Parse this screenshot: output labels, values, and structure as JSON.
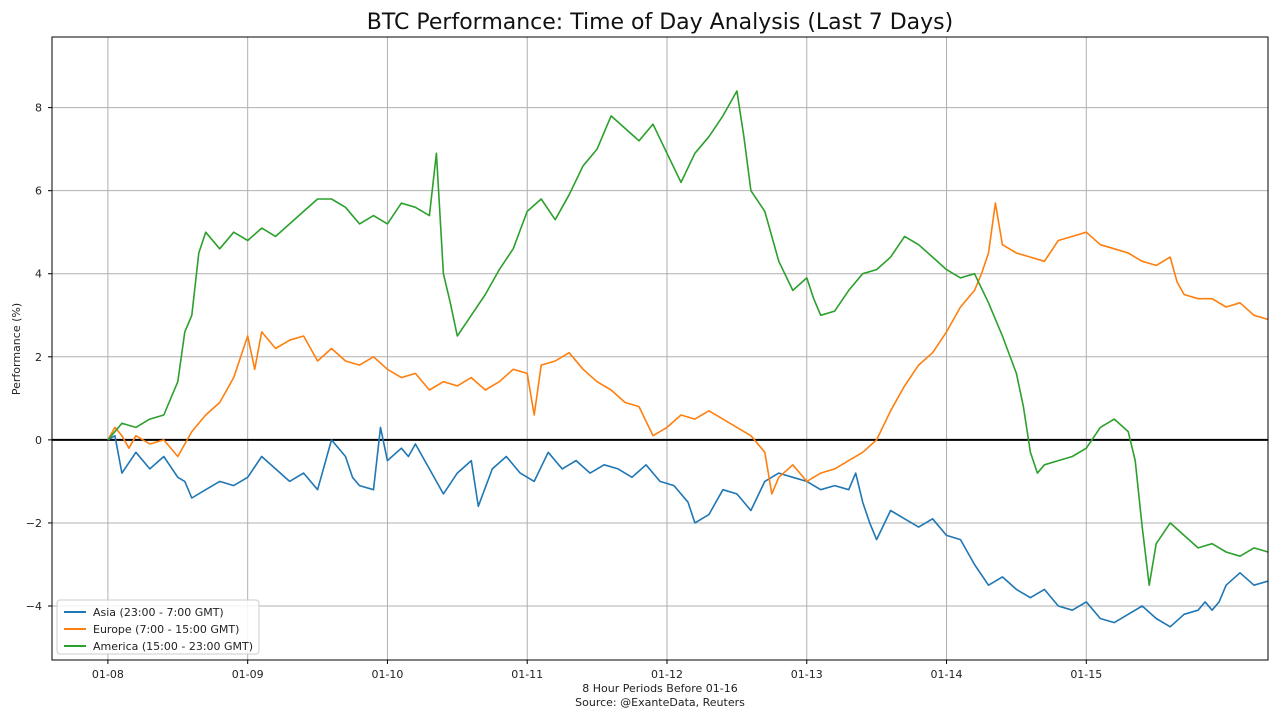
{
  "chart_data": {
    "type": "line",
    "title": "BTC Performance: Time of Day Analysis (Last 7 Days)",
    "xlabel": "8 Hour Periods Before 01-16",
    "source": "Source: @ExanteData, Reuters",
    "ylabel": "Performance (%)",
    "x_unit": "day offset from 01-08",
    "x_ticks": [
      "01-08",
      "01-09",
      "01-10",
      "01-11",
      "01-12",
      "01-13",
      "01-14",
      "01-15"
    ],
    "xlim": [
      -0.4,
      8.3
    ],
    "y_ticks": [
      -4,
      -2,
      0,
      2,
      4,
      6,
      8
    ],
    "ylim": [
      -5.3,
      9.7
    ],
    "grid": true,
    "zero_line": true,
    "legend_position": "lower-left",
    "series": [
      {
        "name": "Asia (23:00 - 7:00 GMT)",
        "color": "#1f77b4",
        "points": [
          [
            0,
            0.0
          ],
          [
            0.05,
            0.1
          ],
          [
            0.1,
            -0.8
          ],
          [
            0.2,
            -0.3
          ],
          [
            0.3,
            -0.7
          ],
          [
            0.4,
            -0.4
          ],
          [
            0.5,
            -0.9
          ],
          [
            0.55,
            -1.0
          ],
          [
            0.6,
            -1.4
          ],
          [
            0.7,
            -1.2
          ],
          [
            0.8,
            -1.0
          ],
          [
            0.9,
            -1.1
          ],
          [
            1.0,
            -0.9
          ],
          [
            1.1,
            -0.4
          ],
          [
            1.2,
            -0.7
          ],
          [
            1.3,
            -1.0
          ],
          [
            1.4,
            -0.8
          ],
          [
            1.5,
            -1.2
          ],
          [
            1.6,
            0.0
          ],
          [
            1.7,
            -0.4
          ],
          [
            1.75,
            -0.9
          ],
          [
            1.8,
            -1.1
          ],
          [
            1.9,
            -1.2
          ],
          [
            1.95,
            0.3
          ],
          [
            2.0,
            -0.5
          ],
          [
            2.1,
            -0.2
          ],
          [
            2.15,
            -0.4
          ],
          [
            2.2,
            -0.1
          ],
          [
            2.3,
            -0.7
          ],
          [
            2.4,
            -1.3
          ],
          [
            2.5,
            -0.8
          ],
          [
            2.6,
            -0.5
          ],
          [
            2.65,
            -1.6
          ],
          [
            2.75,
            -0.7
          ],
          [
            2.85,
            -0.4
          ],
          [
            2.95,
            -0.8
          ],
          [
            3.05,
            -1.0
          ],
          [
            3.15,
            -0.3
          ],
          [
            3.25,
            -0.7
          ],
          [
            3.35,
            -0.5
          ],
          [
            3.45,
            -0.8
          ],
          [
            3.55,
            -0.6
          ],
          [
            3.65,
            -0.7
          ],
          [
            3.75,
            -0.9
          ],
          [
            3.85,
            -0.6
          ],
          [
            3.95,
            -1.0
          ],
          [
            4.05,
            -1.1
          ],
          [
            4.15,
            -1.5
          ],
          [
            4.2,
            -2.0
          ],
          [
            4.3,
            -1.8
          ],
          [
            4.4,
            -1.2
          ],
          [
            4.5,
            -1.3
          ],
          [
            4.6,
            -1.7
          ],
          [
            4.7,
            -1.0
          ],
          [
            4.8,
            -0.8
          ],
          [
            4.9,
            -0.9
          ],
          [
            5.0,
            -1.0
          ],
          [
            5.1,
            -1.2
          ],
          [
            5.2,
            -1.1
          ],
          [
            5.3,
            -1.2
          ],
          [
            5.35,
            -0.8
          ],
          [
            5.4,
            -1.5
          ],
          [
            5.45,
            -2.0
          ],
          [
            5.5,
            -2.4
          ],
          [
            5.6,
            -1.7
          ],
          [
            5.7,
            -1.9
          ],
          [
            5.8,
            -2.1
          ],
          [
            5.9,
            -1.9
          ],
          [
            6.0,
            -2.3
          ],
          [
            6.1,
            -2.4
          ],
          [
            6.2,
            -3.0
          ],
          [
            6.3,
            -3.5
          ],
          [
            6.4,
            -3.3
          ],
          [
            6.5,
            -3.6
          ],
          [
            6.6,
            -3.8
          ],
          [
            6.7,
            -3.6
          ],
          [
            6.8,
            -4.0
          ],
          [
            6.9,
            -4.1
          ],
          [
            7.0,
            -3.9
          ],
          [
            7.1,
            -4.3
          ],
          [
            7.2,
            -4.4
          ],
          [
            7.3,
            -4.2
          ],
          [
            7.4,
            -4.0
          ],
          [
            7.5,
            -4.3
          ],
          [
            7.6,
            -4.5
          ],
          [
            7.7,
            -4.2
          ],
          [
            7.8,
            -4.1
          ],
          [
            7.85,
            -3.9
          ],
          [
            7.9,
            -4.1
          ],
          [
            7.95,
            -3.9
          ],
          [
            8.0,
            -3.5
          ],
          [
            8.1,
            -3.2
          ],
          [
            8.2,
            -3.5
          ],
          [
            8.3,
            -3.4
          ]
        ]
      },
      {
        "name": "Europe (7:00 - 15:00 GMT)",
        "color": "#ff7f0e",
        "points": [
          [
            0,
            0.0
          ],
          [
            0.05,
            0.3
          ],
          [
            0.1,
            0.1
          ],
          [
            0.15,
            -0.2
          ],
          [
            0.2,
            0.1
          ],
          [
            0.3,
            -0.1
          ],
          [
            0.4,
            0.0
          ],
          [
            0.5,
            -0.4
          ],
          [
            0.6,
            0.2
          ],
          [
            0.7,
            0.6
          ],
          [
            0.8,
            0.9
          ],
          [
            0.9,
            1.5
          ],
          [
            0.95,
            2.0
          ],
          [
            1.0,
            2.5
          ],
          [
            1.05,
            1.7
          ],
          [
            1.1,
            2.6
          ],
          [
            1.2,
            2.2
          ],
          [
            1.3,
            2.4
          ],
          [
            1.4,
            2.5
          ],
          [
            1.5,
            1.9
          ],
          [
            1.6,
            2.2
          ],
          [
            1.7,
            1.9
          ],
          [
            1.8,
            1.8
          ],
          [
            1.9,
            2.0
          ],
          [
            2.0,
            1.7
          ],
          [
            2.1,
            1.5
          ],
          [
            2.2,
            1.6
          ],
          [
            2.3,
            1.2
          ],
          [
            2.4,
            1.4
          ],
          [
            2.5,
            1.3
          ],
          [
            2.6,
            1.5
          ],
          [
            2.7,
            1.2
          ],
          [
            2.8,
            1.4
          ],
          [
            2.9,
            1.7
          ],
          [
            3.0,
            1.6
          ],
          [
            3.05,
            0.6
          ],
          [
            3.1,
            1.8
          ],
          [
            3.2,
            1.9
          ],
          [
            3.3,
            2.1
          ],
          [
            3.4,
            1.7
          ],
          [
            3.5,
            1.4
          ],
          [
            3.6,
            1.2
          ],
          [
            3.7,
            0.9
          ],
          [
            3.8,
            0.8
          ],
          [
            3.9,
            0.1
          ],
          [
            4.0,
            0.3
          ],
          [
            4.1,
            0.6
          ],
          [
            4.2,
            0.5
          ],
          [
            4.3,
            0.7
          ],
          [
            4.4,
            0.5
          ],
          [
            4.5,
            0.3
          ],
          [
            4.6,
            0.1
          ],
          [
            4.7,
            -0.3
          ],
          [
            4.75,
            -1.3
          ],
          [
            4.8,
            -0.9
          ],
          [
            4.9,
            -0.6
          ],
          [
            5.0,
            -1.0
          ],
          [
            5.1,
            -0.8
          ],
          [
            5.2,
            -0.7
          ],
          [
            5.3,
            -0.5
          ],
          [
            5.4,
            -0.3
          ],
          [
            5.5,
            0.0
          ],
          [
            5.6,
            0.7
          ],
          [
            5.7,
            1.3
          ],
          [
            5.8,
            1.8
          ],
          [
            5.9,
            2.1
          ],
          [
            6.0,
            2.6
          ],
          [
            6.1,
            3.2
          ],
          [
            6.2,
            3.6
          ],
          [
            6.25,
            4.0
          ],
          [
            6.3,
            4.5
          ],
          [
            6.35,
            5.7
          ],
          [
            6.4,
            4.7
          ],
          [
            6.5,
            4.5
          ],
          [
            6.6,
            4.4
          ],
          [
            6.7,
            4.3
          ],
          [
            6.8,
            4.8
          ],
          [
            6.9,
            4.9
          ],
          [
            7.0,
            5.0
          ],
          [
            7.1,
            4.7
          ],
          [
            7.2,
            4.6
          ],
          [
            7.3,
            4.5
          ],
          [
            7.4,
            4.3
          ],
          [
            7.5,
            4.2
          ],
          [
            7.6,
            4.4
          ],
          [
            7.65,
            3.8
          ],
          [
            7.7,
            3.5
          ],
          [
            7.8,
            3.4
          ],
          [
            7.9,
            3.4
          ],
          [
            8.0,
            3.2
          ],
          [
            8.1,
            3.3
          ],
          [
            8.2,
            3.0
          ],
          [
            8.3,
            2.9
          ]
        ]
      },
      {
        "name": "America (15:00 - 23:00 GMT)",
        "color": "#2ca02c",
        "points": [
          [
            0,
            0.0
          ],
          [
            0.05,
            0.2
          ],
          [
            0.1,
            0.4
          ],
          [
            0.2,
            0.3
          ],
          [
            0.3,
            0.5
          ],
          [
            0.4,
            0.6
          ],
          [
            0.5,
            1.4
          ],
          [
            0.55,
            2.6
          ],
          [
            0.6,
            3.0
          ],
          [
            0.65,
            4.5
          ],
          [
            0.7,
            5.0
          ],
          [
            0.8,
            4.6
          ],
          [
            0.9,
            5.0
          ],
          [
            1.0,
            4.8
          ],
          [
            1.1,
            5.1
          ],
          [
            1.2,
            4.9
          ],
          [
            1.3,
            5.2
          ],
          [
            1.4,
            5.5
          ],
          [
            1.5,
            5.8
          ],
          [
            1.6,
            5.8
          ],
          [
            1.7,
            5.6
          ],
          [
            1.8,
            5.2
          ],
          [
            1.9,
            5.4
          ],
          [
            2.0,
            5.2
          ],
          [
            2.1,
            5.7
          ],
          [
            2.2,
            5.6
          ],
          [
            2.3,
            5.4
          ],
          [
            2.35,
            6.9
          ],
          [
            2.4,
            4.0
          ],
          [
            2.45,
            3.3
          ],
          [
            2.5,
            2.5
          ],
          [
            2.6,
            3.0
          ],
          [
            2.7,
            3.5
          ],
          [
            2.8,
            4.1
          ],
          [
            2.9,
            4.6
          ],
          [
            3.0,
            5.5
          ],
          [
            3.1,
            5.8
          ],
          [
            3.2,
            5.3
          ],
          [
            3.3,
            5.9
          ],
          [
            3.4,
            6.6
          ],
          [
            3.5,
            7.0
          ],
          [
            3.6,
            7.8
          ],
          [
            3.7,
            7.5
          ],
          [
            3.8,
            7.2
          ],
          [
            3.9,
            7.6
          ],
          [
            4.0,
            6.9
          ],
          [
            4.1,
            6.2
          ],
          [
            4.2,
            6.9
          ],
          [
            4.3,
            7.3
          ],
          [
            4.4,
            7.8
          ],
          [
            4.5,
            8.4
          ],
          [
            4.55,
            7.3
          ],
          [
            4.6,
            6.0
          ],
          [
            4.7,
            5.5
          ],
          [
            4.8,
            4.3
          ],
          [
            4.9,
            3.6
          ],
          [
            5.0,
            3.9
          ],
          [
            5.05,
            3.4
          ],
          [
            5.1,
            3.0
          ],
          [
            5.2,
            3.1
          ],
          [
            5.3,
            3.6
          ],
          [
            5.4,
            4.0
          ],
          [
            5.5,
            4.1
          ],
          [
            5.6,
            4.4
          ],
          [
            5.7,
            4.9
          ],
          [
            5.8,
            4.7
          ],
          [
            5.9,
            4.4
          ],
          [
            6.0,
            4.1
          ],
          [
            6.1,
            3.9
          ],
          [
            6.2,
            4.0
          ],
          [
            6.3,
            3.3
          ],
          [
            6.4,
            2.5
          ],
          [
            6.5,
            1.6
          ],
          [
            6.55,
            0.8
          ],
          [
            6.6,
            -0.3
          ],
          [
            6.65,
            -0.8
          ],
          [
            6.7,
            -0.6
          ],
          [
            6.8,
            -0.5
          ],
          [
            6.9,
            -0.4
          ],
          [
            7.0,
            -0.2
          ],
          [
            7.1,
            0.3
          ],
          [
            7.2,
            0.5
          ],
          [
            7.3,
            0.2
          ],
          [
            7.35,
            -0.5
          ],
          [
            7.4,
            -2.1
          ],
          [
            7.45,
            -3.5
          ],
          [
            7.5,
            -2.5
          ],
          [
            7.6,
            -2.0
          ],
          [
            7.7,
            -2.3
          ],
          [
            7.8,
            -2.6
          ],
          [
            7.9,
            -2.5
          ],
          [
            8.0,
            -2.7
          ],
          [
            8.1,
            -2.8
          ],
          [
            8.2,
            -2.6
          ],
          [
            8.3,
            -2.7
          ]
        ]
      }
    ]
  }
}
